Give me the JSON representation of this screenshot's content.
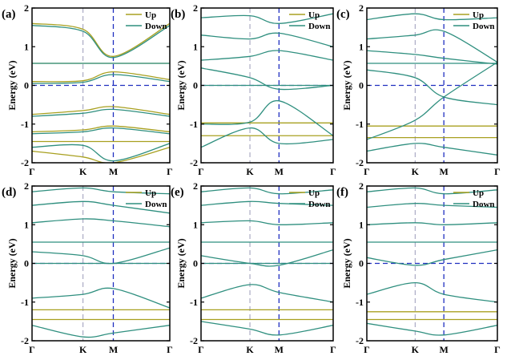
{
  "style": {
    "up_color": "#a8a020",
    "down_color": "#2f8f7f",
    "fermi_color": "#2030c0",
    "k_line_color": "#9a9ab8",
    "m_line_color": "#2030c0"
  },
  "common": {
    "ylabel": "Energy (eV)",
    "ylim": [
      -2,
      2
    ],
    "yticks": [
      "2",
      "1",
      "0",
      "-1",
      "-2"
    ],
    "kpoints": [
      "Γ",
      "K",
      "M",
      "Γ"
    ],
    "kpos": [
      0,
      0.37,
      0.59,
      1
    ],
    "legend": [
      "Up",
      "Down"
    ]
  },
  "chart_data": [
    {
      "type": "line",
      "label": "(a)",
      "flat_up": [
        0.57,
        -1.45
      ],
      "flat_down": [
        0.57
      ],
      "series": [
        {
          "name": "Up",
          "x": [
            0,
            0.37,
            0.59,
            1
          ],
          "y": [
            1.6,
            1.45,
            0.75,
            1.6
          ]
        },
        {
          "name": "Down",
          "x": [
            0,
            0.37,
            0.59,
            1
          ],
          "y": [
            1.55,
            1.4,
            0.72,
            1.55
          ]
        },
        {
          "name": "Up",
          "x": [
            0,
            0.37,
            0.59,
            1
          ],
          "y": [
            0.1,
            0.12,
            0.35,
            0.15
          ]
        },
        {
          "name": "Down",
          "x": [
            0,
            0.37,
            0.59,
            1
          ],
          "y": [
            0.05,
            0.08,
            0.28,
            0.1
          ]
        },
        {
          "name": "Up",
          "x": [
            0,
            0.37,
            0.59,
            1
          ],
          "y": [
            -0.75,
            -0.65,
            -0.55,
            -0.75
          ]
        },
        {
          "name": "Down",
          "x": [
            0,
            0.37,
            0.59,
            1
          ],
          "y": [
            -0.8,
            -0.72,
            -0.62,
            -0.8
          ]
        },
        {
          "name": "Up",
          "x": [
            0,
            0.37,
            0.59,
            1
          ],
          "y": [
            -1.2,
            -1.15,
            -1.05,
            -1.2
          ]
        },
        {
          "name": "Down",
          "x": [
            0,
            0.37,
            0.59,
            1
          ],
          "y": [
            -1.25,
            -1.2,
            -1.1,
            -1.25
          ]
        },
        {
          "name": "Down",
          "x": [
            0,
            0.37,
            0.59,
            1
          ],
          "y": [
            -1.6,
            -1.55,
            -1.95,
            -1.5
          ]
        },
        {
          "name": "Up",
          "x": [
            0,
            0.37,
            0.59,
            1
          ],
          "y": [
            -1.7,
            -1.85,
            -2.0,
            -1.6
          ]
        }
      ]
    },
    {
      "type": "line",
      "label": "(b)",
      "flat_up": [
        -0.97,
        -1.3
      ],
      "flat_down": [
        0.0
      ],
      "series": [
        {
          "name": "Down",
          "x": [
            0,
            0.37,
            0.59,
            1
          ],
          "y": [
            1.75,
            1.8,
            1.6,
            1.85
          ]
        },
        {
          "name": "Down",
          "x": [
            0,
            0.37,
            0.59,
            1
          ],
          "y": [
            1.3,
            1.2,
            1.35,
            1.0
          ]
        },
        {
          "name": "Down",
          "x": [
            0,
            0.37,
            0.59,
            1
          ],
          "y": [
            0.65,
            0.75,
            0.9,
            0.65
          ]
        },
        {
          "name": "Down",
          "x": [
            0,
            0.37,
            0.59,
            1
          ],
          "y": [
            0.45,
            0.2,
            -0.1,
            0.0
          ]
        },
        {
          "name": "Down",
          "x": [
            0,
            0.37,
            0.59,
            1
          ],
          "y": [
            -1.0,
            -0.95,
            -0.4,
            -1.3
          ]
        },
        {
          "name": "Down",
          "x": [
            0,
            0.37,
            0.59,
            1
          ],
          "y": [
            -1.6,
            -1.1,
            -1.5,
            -1.4
          ]
        }
      ]
    },
    {
      "type": "line",
      "label": "(c)",
      "flat_up": [
        -1.05,
        -1.35
      ],
      "flat_down": [
        0.57
      ],
      "series": [
        {
          "name": "Down",
          "x": [
            0,
            0.37,
            0.59,
            1
          ],
          "y": [
            1.7,
            1.85,
            1.7,
            1.75
          ]
        },
        {
          "name": "Down",
          "x": [
            0,
            0.37,
            0.59,
            1
          ],
          "y": [
            1.2,
            1.3,
            1.4,
            0.6
          ]
        },
        {
          "name": "Down",
          "x": [
            0,
            0.37,
            0.59,
            1
          ],
          "y": [
            0.9,
            0.8,
            0.7,
            0.55
          ]
        },
        {
          "name": "Down",
          "x": [
            0,
            0.37,
            0.59,
            1
          ],
          "y": [
            0.4,
            0.2,
            -0.3,
            -0.5
          ]
        },
        {
          "name": "Down",
          "x": [
            0,
            0.37,
            0.59,
            1
          ],
          "y": [
            -1.4,
            -0.9,
            -0.3,
            0.6
          ]
        },
        {
          "name": "Down",
          "x": [
            0,
            0.37,
            0.59,
            1
          ],
          "y": [
            -1.7,
            -1.5,
            -1.6,
            -1.8
          ]
        }
      ]
    },
    {
      "type": "line",
      "label": "(d)",
      "flat_up": [
        -1.2,
        -1.45
      ],
      "flat_down": [
        0.55,
        0.0
      ],
      "series": [
        {
          "name": "Down",
          "x": [
            0,
            0.37,
            0.59,
            1
          ],
          "y": [
            1.85,
            1.95,
            1.85,
            1.8
          ]
        },
        {
          "name": "Down",
          "x": [
            0,
            0.37,
            0.59,
            1
          ],
          "y": [
            1.5,
            1.6,
            1.5,
            1.3
          ]
        },
        {
          "name": "Down",
          "x": [
            0,
            0.37,
            0.59,
            1
          ],
          "y": [
            1.05,
            1.15,
            1.1,
            0.95
          ]
        },
        {
          "name": "Down",
          "x": [
            0,
            0.37,
            0.59,
            1
          ],
          "y": [
            0.3,
            0.2,
            0.0,
            0.4
          ]
        },
        {
          "name": "Down",
          "x": [
            0,
            0.37,
            0.59,
            1
          ],
          "y": [
            -0.9,
            -0.8,
            -0.65,
            -1.15
          ]
        },
        {
          "name": "Down",
          "x": [
            0,
            0.37,
            0.59,
            1
          ],
          "y": [
            -1.6,
            -1.9,
            -1.8,
            -1.6
          ]
        }
      ]
    },
    {
      "type": "line",
      "label": "(e)",
      "flat_up": [
        -1.2,
        -1.45
      ],
      "flat_down": [
        0.55,
        0.0
      ],
      "series": [
        {
          "name": "Down",
          "x": [
            0,
            0.37,
            0.59,
            1
          ],
          "y": [
            1.85,
            1.95,
            1.8,
            1.9
          ]
        },
        {
          "name": "Down",
          "x": [
            0,
            0.37,
            0.59,
            1
          ],
          "y": [
            1.5,
            1.6,
            1.55,
            1.5
          ]
        },
        {
          "name": "Down",
          "x": [
            0,
            0.37,
            0.59,
            1
          ],
          "y": [
            1.05,
            1.1,
            1.0,
            1.05
          ]
        },
        {
          "name": "Down",
          "x": [
            0,
            0.37,
            0.59,
            1
          ],
          "y": [
            0.2,
            0.0,
            -0.05,
            0.35
          ]
        },
        {
          "name": "Down",
          "x": [
            0,
            0.37,
            0.59,
            1
          ],
          "y": [
            -0.9,
            -0.55,
            -0.75,
            -1.0
          ]
        },
        {
          "name": "Down",
          "x": [
            0,
            0.37,
            0.59,
            1
          ],
          "y": [
            -1.5,
            -1.7,
            -1.85,
            -1.6
          ]
        }
      ]
    },
    {
      "type": "line",
      "label": "(f)",
      "flat_up": [
        -1.25,
        -1.45
      ],
      "flat_down": [
        0.55
      ],
      "series": [
        {
          "name": "Down",
          "x": [
            0,
            0.37,
            0.59,
            1
          ],
          "y": [
            1.85,
            1.95,
            1.8,
            1.9
          ]
        },
        {
          "name": "Down",
          "x": [
            0,
            0.37,
            0.59,
            1
          ],
          "y": [
            1.45,
            1.55,
            1.5,
            1.45
          ]
        },
        {
          "name": "Down",
          "x": [
            0,
            0.37,
            0.59,
            1
          ],
          "y": [
            1.0,
            1.05,
            1.0,
            1.05
          ]
        },
        {
          "name": "Down",
          "x": [
            0,
            0.37,
            0.59,
            1
          ],
          "y": [
            0.15,
            -0.05,
            0.1,
            0.35
          ]
        },
        {
          "name": "Down",
          "x": [
            0,
            0.37,
            0.59,
            1
          ],
          "y": [
            -0.8,
            -0.5,
            -0.8,
            -1.0
          ]
        },
        {
          "name": "Down",
          "x": [
            0,
            0.37,
            0.59,
            1
          ],
          "y": [
            -1.55,
            -1.75,
            -1.85,
            -1.6
          ]
        }
      ]
    }
  ]
}
